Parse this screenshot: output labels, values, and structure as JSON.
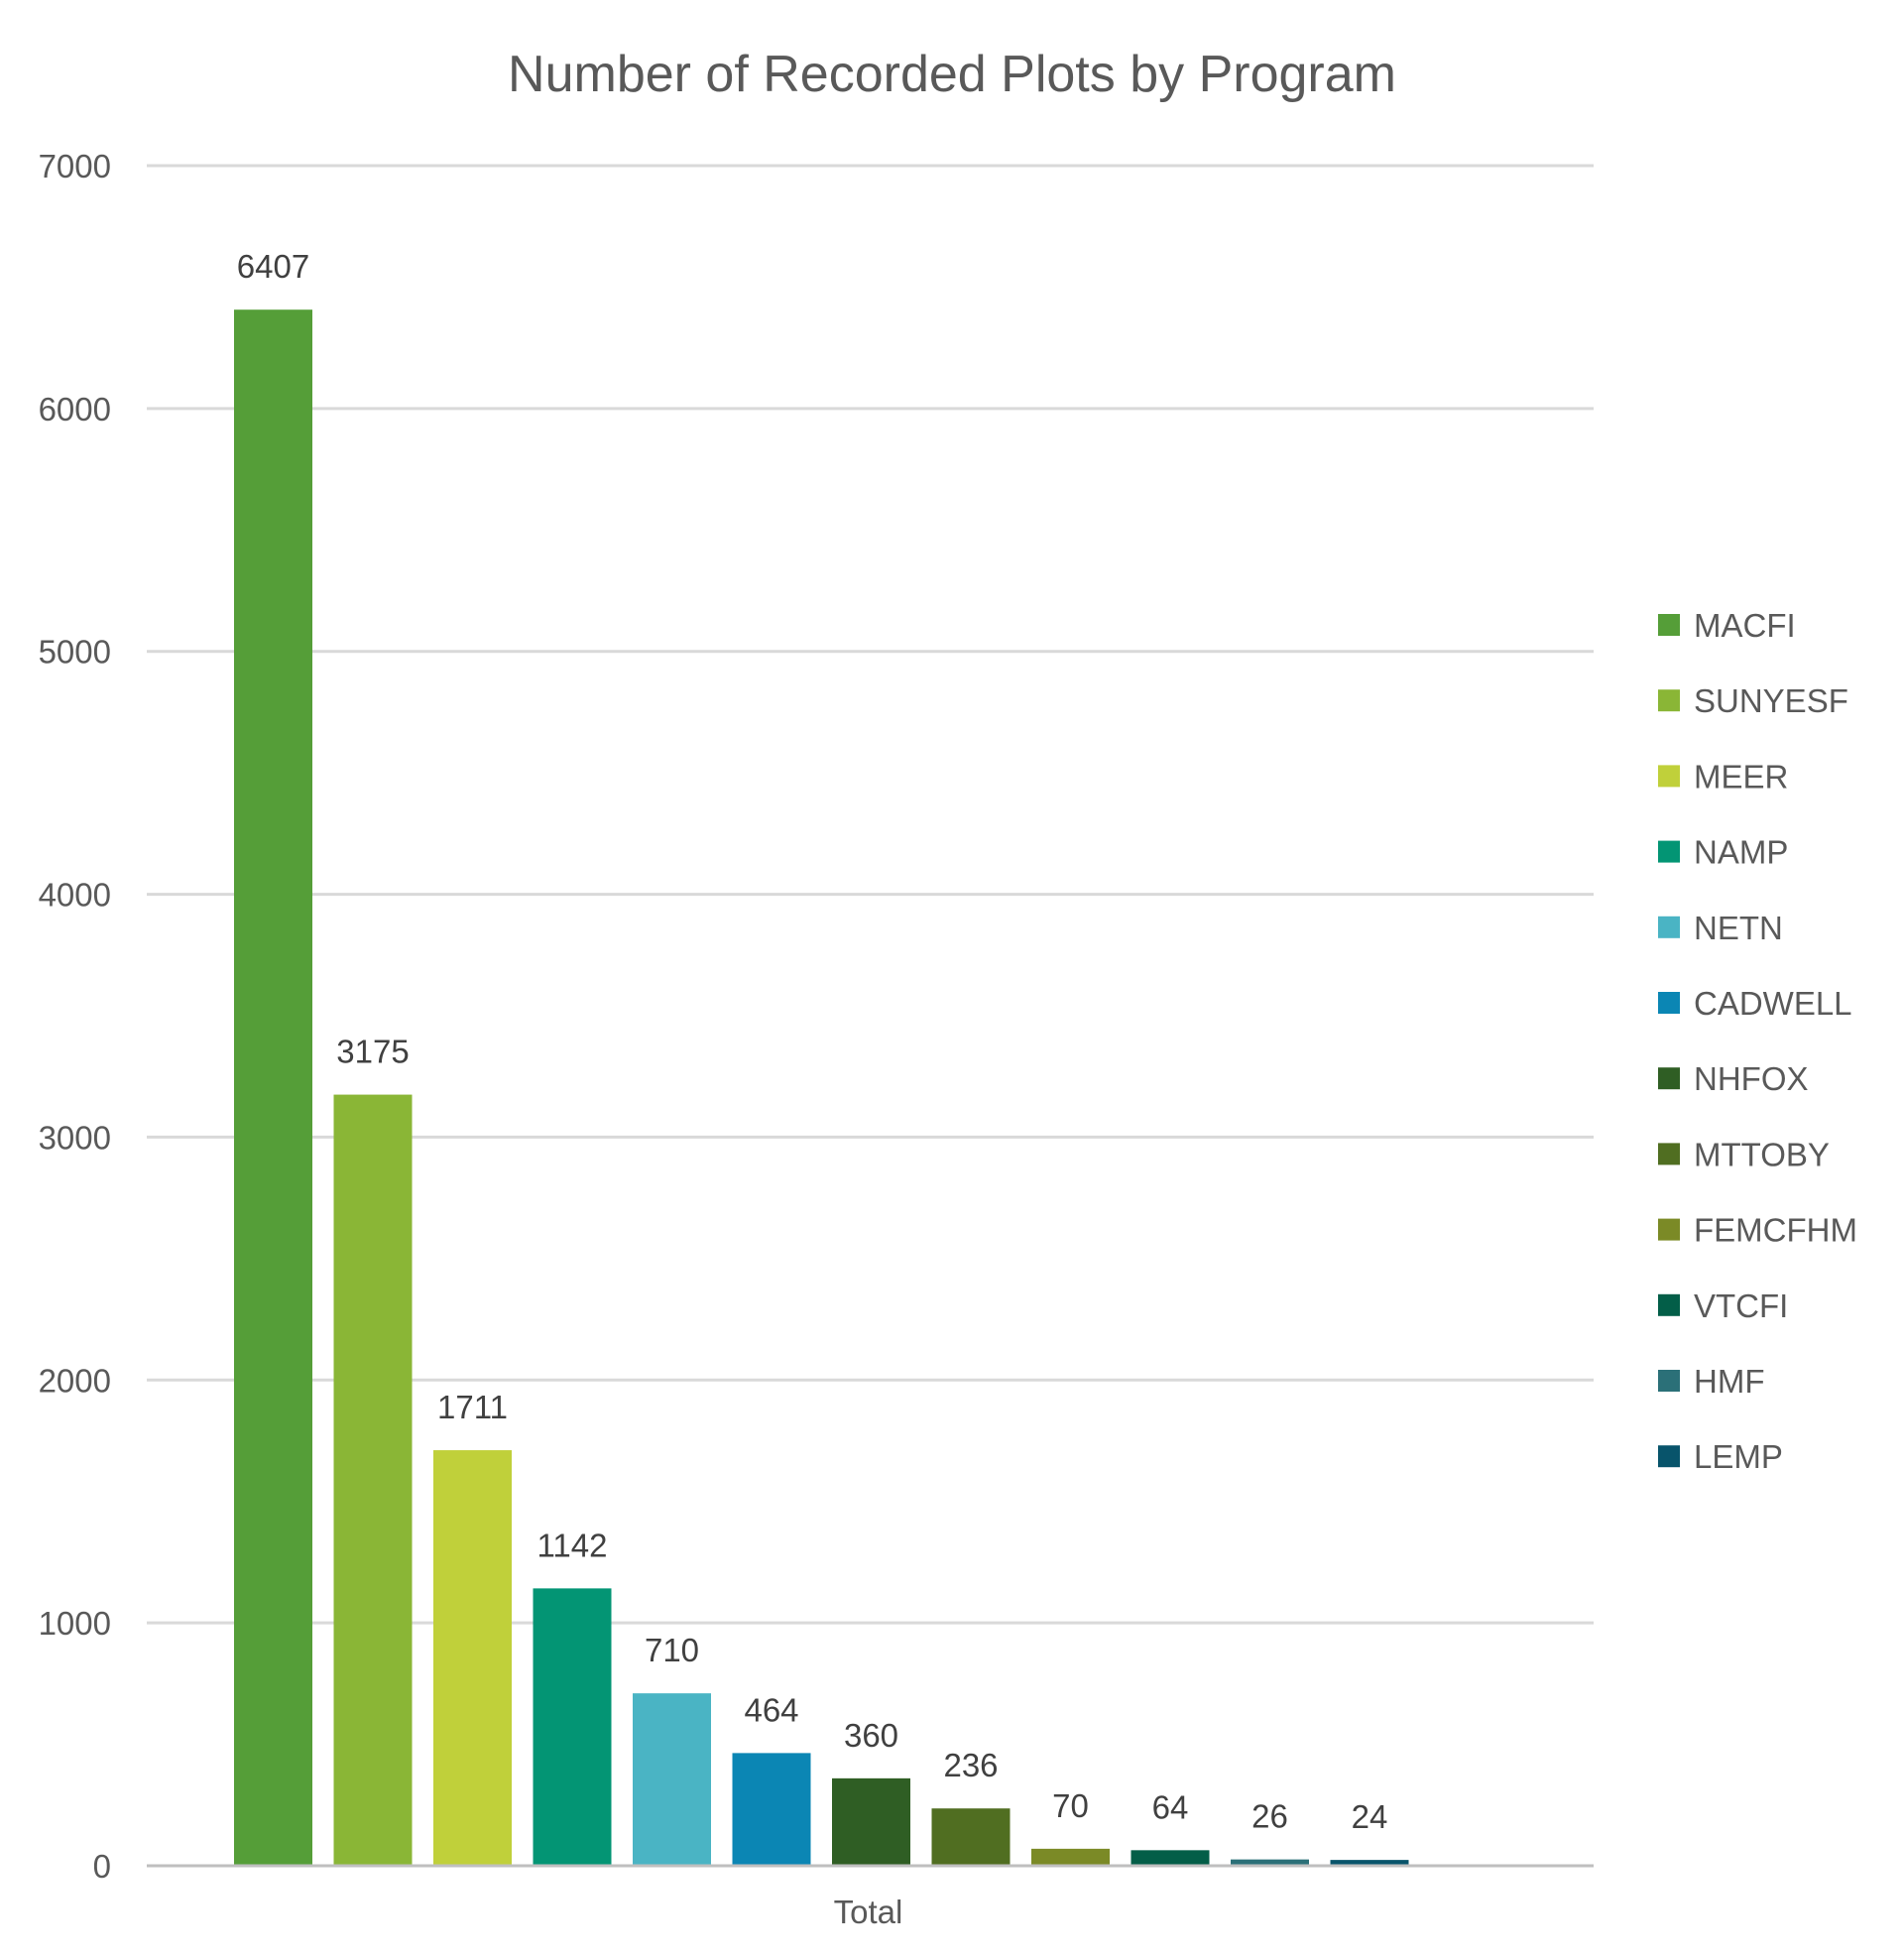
{
  "chart_data": {
    "type": "bar",
    "title": "Number of Recorded Plots by Program",
    "categories": [
      "Total"
    ],
    "series": [
      {
        "name": "MACFI",
        "values": [
          6407
        ],
        "color": "#559e38"
      },
      {
        "name": "SUNYESF",
        "values": [
          3175
        ],
        "color": "#8ab636"
      },
      {
        "name": "MEER",
        "values": [
          1711
        ],
        "color": "#c0d03a"
      },
      {
        "name": "NAMP",
        "values": [
          1142
        ],
        "color": "#039574"
      },
      {
        "name": "NETN",
        "values": [
          710
        ],
        "color": "#4ab4c4"
      },
      {
        "name": "CADWELL",
        "values": [
          464
        ],
        "color": "#0b86b4"
      },
      {
        "name": "NHFOX",
        "values": [
          360
        ],
        "color": "#2f5e24"
      },
      {
        "name": "MTTOBY",
        "values": [
          236
        ],
        "color": "#506e21"
      },
      {
        "name": "FEMCFHM",
        "values": [
          70
        ],
        "color": "#7b8a26"
      },
      {
        "name": "VTCFI",
        "values": [
          64
        ],
        "color": "#035e48"
      },
      {
        "name": "HMF",
        "values": [
          26
        ],
        "color": "#2b7078"
      },
      {
        "name": "LEMP",
        "values": [
          24
        ],
        "color": "#08546b"
      }
    ],
    "ylim": [
      0,
      7000
    ],
    "yticks": [
      0,
      1000,
      2000,
      3000,
      4000,
      5000,
      6000,
      7000
    ],
    "grid": true,
    "legend": "right",
    "xlabel": "",
    "ylabel": ""
  }
}
